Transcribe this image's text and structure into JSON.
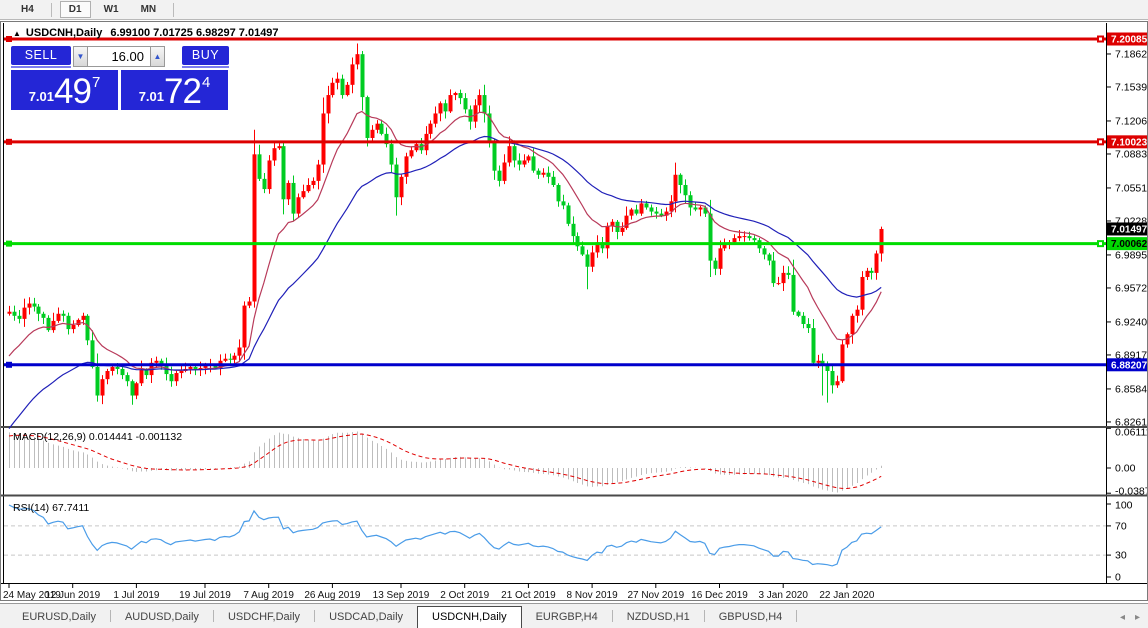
{
  "toolbar": {
    "buttons": [
      "H4",
      "D1",
      "W1",
      "MN"
    ],
    "active": "D1"
  },
  "chart": {
    "title_symbol": "USDCNH,Daily",
    "title_ohlc": "6.99100 7.01725 6.98297 7.01497",
    "expand_icon": "▲",
    "trade_panel": {
      "sell_label": "SELL",
      "buy_label": "BUY",
      "volume": "16.00",
      "spin_down_icon": "▼",
      "spin_up_icon": "▲",
      "sell_price_small": "7.01",
      "sell_price_big": "49",
      "sell_price_sup": "7",
      "buy_price_small": "7.01",
      "buy_price_big": "72",
      "buy_price_sup": "4"
    },
    "scale_ticks": [
      {
        "label": "7.18620",
        "price": 7.1862
      },
      {
        "label": "7.15390",
        "price": 7.1539
      },
      {
        "label": "7.12065",
        "price": 7.12065
      },
      {
        "label": "7.08835",
        "price": 7.08835
      },
      {
        "label": "7.05510",
        "price": 7.0551
      },
      {
        "label": "7.02280",
        "price": 7.0228
      },
      {
        "label": "6.98955",
        "price": 6.98955
      },
      {
        "label": "6.95725",
        "price": 6.95725
      },
      {
        "label": "6.92400",
        "price": 6.924
      },
      {
        "label": "6.89170",
        "price": 6.8917
      },
      {
        "label": "6.85845",
        "price": 6.85845
      },
      {
        "label": "6.82615",
        "price": 6.82615
      }
    ],
    "badges": [
      {
        "label": "7.20085",
        "price": 7.20085,
        "bg": "#dd0000",
        "fg": "#ffffff"
      },
      {
        "label": "7.10023",
        "price": 7.10023,
        "bg": "#dd0000",
        "fg": "#ffffff"
      },
      {
        "label": "7.01497",
        "price": 7.01497,
        "bg": "#000000",
        "fg": "#ffffff"
      },
      {
        "label": "7.00062",
        "price": 7.00062,
        "bg": "#00d800",
        "fg": "#000000"
      },
      {
        "label": "6.88207",
        "price": 6.88207,
        "bg": "#0000cc",
        "fg": "#ffffff"
      }
    ],
    "hlines": [
      {
        "price": 7.20085,
        "color": "#dd0000",
        "width": 3,
        "right_handle": true
      },
      {
        "price": 7.10023,
        "color": "#dd0000",
        "width": 3,
        "right_handle": true
      },
      {
        "price": 7.00062,
        "color": "#00dd00",
        "width": 3,
        "right_handle": true
      },
      {
        "price": 6.88207,
        "color": "#0000cc",
        "width": 3,
        "right_handle": false
      }
    ]
  },
  "macd_panel": {
    "label": "MACD(12,26,9) 0.014441 -0.001132",
    "scale": [
      {
        "label": "0.061119",
        "v": 0.061119
      },
      {
        "label": "0.00",
        "v": 0
      },
      {
        "label": "-0.03877",
        "v": -0.03877
      }
    ]
  },
  "rsi_panel": {
    "label": "RSI(14) 67.7411",
    "scale": [
      {
        "label": "100",
        "v": 100
      },
      {
        "label": "70",
        "v": 70
      },
      {
        "label": "30",
        "v": 30
      },
      {
        "label": "0",
        "v": 0
      }
    ],
    "levels": [
      70,
      30
    ]
  },
  "tabs": {
    "items": [
      "EURUSD,Daily",
      "AUDUSD,Daily",
      "USDCHF,Daily",
      "USDCAD,Daily",
      "USDCNH,Daily",
      "EURGBP,H4",
      "NZDUSD,H1",
      "GBPUSD,H4"
    ],
    "active_index": 4,
    "left_arrow": "◂",
    "right_arrow": "▸"
  },
  "chart_data": {
    "type": "candlestick",
    "symbol": "USDCNH",
    "timeframe": "Daily",
    "title": "USDCNH,Daily",
    "current_candle": {
      "o": 6.991,
      "h": 7.01725,
      "l": 6.98297,
      "c": 7.01497
    },
    "up_color": "#fe0000",
    "down_color": "#00cc22",
    "note_color_convention": "red = bullish, green = bearish",
    "price_axis": {
      "min": 6.8232,
      "max": 7.2165
    },
    "x_labels": [
      {
        "text": "24 May 2019",
        "idx": 0
      },
      {
        "text": "12 Jun 2019",
        "idx": 13
      },
      {
        "text": "1 Jul 2019",
        "idx": 26
      },
      {
        "text": "19 Jul 2019",
        "idx": 40
      },
      {
        "text": "7 Aug 2019",
        "idx": 53
      },
      {
        "text": "26 Aug 2019",
        "idx": 66
      },
      {
        "text": "13 Sep 2019",
        "idx": 80
      },
      {
        "text": "2 Oct 2019",
        "idx": 93
      },
      {
        "text": "21 Oct 2019",
        "idx": 106
      },
      {
        "text": "8 Nov 2019",
        "idx": 119
      },
      {
        "text": "27 Nov 2019",
        "idx": 132
      },
      {
        "text": "16 Dec 2019",
        "idx": 145
      },
      {
        "text": "3 Jan 2020",
        "idx": 158
      },
      {
        "text": "22 Jan 2020",
        "idx": 171
      }
    ],
    "warmup_closes": [
      6.7,
      6.702,
      6.705,
      6.71,
      6.716,
      6.722,
      6.73,
      6.74,
      6.752,
      6.765,
      6.778,
      6.792,
      6.806,
      6.82,
      6.835,
      6.85,
      6.865,
      6.88,
      6.895,
      6.908,
      6.918,
      6.926,
      6.93,
      6.928,
      6.932
    ],
    "closes": [
      6.934,
      6.93,
      6.927,
      6.938,
      6.942,
      6.939,
      6.932,
      6.928,
      6.916,
      6.925,
      6.932,
      6.93,
      6.917,
      6.921,
      6.926,
      6.93,
      6.906,
      6.88,
      6.852,
      6.868,
      6.876,
      6.88,
      6.878,
      6.872,
      6.866,
      6.852,
      6.864,
      6.877,
      6.872,
      6.884,
      6.886,
      6.883,
      6.873,
      6.866,
      6.874,
      6.876,
      6.878,
      6.88,
      6.877,
      6.879,
      6.881,
      6.882,
      6.879,
      6.886,
      6.888,
      6.887,
      6.891,
      6.899,
      6.94,
      6.944,
      7.088,
      7.064,
      7.054,
      7.082,
      7.094,
      7.096,
      7.044,
      7.06,
      7.03,
      7.046,
      7.052,
      7.058,
      7.062,
      7.078,
      7.128,
      7.146,
      7.158,
      7.162,
      7.146,
      7.156,
      7.176,
      7.186,
      7.144,
      7.104,
      7.112,
      7.118,
      7.108,
      7.098,
      7.078,
      7.046,
      7.066,
      7.086,
      7.092,
      7.098,
      7.092,
      7.108,
      7.118,
      7.128,
      7.138,
      7.13,
      7.146,
      7.148,
      7.143,
      7.132,
      7.12,
      7.136,
      7.146,
      7.128,
      7.1,
      7.072,
      7.062,
      7.08,
      7.096,
      7.082,
      7.078,
      7.082,
      7.086,
      7.072,
      7.068,
      7.07,
      7.066,
      7.058,
      7.042,
      7.038,
      7.02,
      7.008,
      6.998,
      6.99,
      6.978,
      6.992,
      7.002,
      6.996,
      7.018,
      7.022,
      7.012,
      7.016,
      7.028,
      7.034,
      7.03,
      7.04,
      7.036,
      7.032,
      7.03,
      7.028,
      7.032,
      7.042,
      7.068,
      7.058,
      7.048,
      7.036,
      7.034,
      7.036,
      7.03,
      6.984,
      6.976,
      6.996,
      7.0,
      7.002,
      7.006,
      7.008,
      7.008,
      7.006,
      7.004,
      6.996,
      6.99,
      6.984,
      6.962,
      6.962,
      6.972,
      6.97,
      6.934,
      6.93,
      6.922,
      6.918,
      6.884,
      6.886,
      6.882,
      6.876,
      6.862,
      6.866,
      6.902,
      6.912,
      6.93,
      6.936,
      6.968,
      6.974,
      6.972,
      6.991,
      7.015
    ],
    "wick_overrides": {
      "18": {
        "l": 6.846
      },
      "25": {
        "l": 6.843
      },
      "50": {
        "h": 7.112,
        "l": 6.938
      },
      "71": {
        "h": 7.1965
      },
      "79": {
        "l": 7.028
      },
      "118": {
        "l": 6.956
      },
      "143": {
        "l": 6.968
      },
      "166": {
        "l": 6.852
      },
      "167": {
        "l": 6.845
      },
      "178": {
        "o": 6.991,
        "h": 7.01725,
        "l": 6.98297,
        "c": 7.01497
      }
    },
    "indicators": {
      "ma_fast": {
        "type": "EMA",
        "period": 13,
        "color": "#b83a5a"
      },
      "ma_slow": {
        "type": "EMA",
        "period": 34,
        "color": "#2020b8"
      },
      "macd": {
        "fast": 12,
        "slow": 26,
        "signal": 9,
        "value": 0.014441,
        "signal_value": -0.001132,
        "hist_color": "#bdbdbd",
        "signal_color": "#e00000"
      },
      "rsi": {
        "period": 14,
        "value": 67.7411,
        "color": "#4a9ce8"
      }
    }
  }
}
